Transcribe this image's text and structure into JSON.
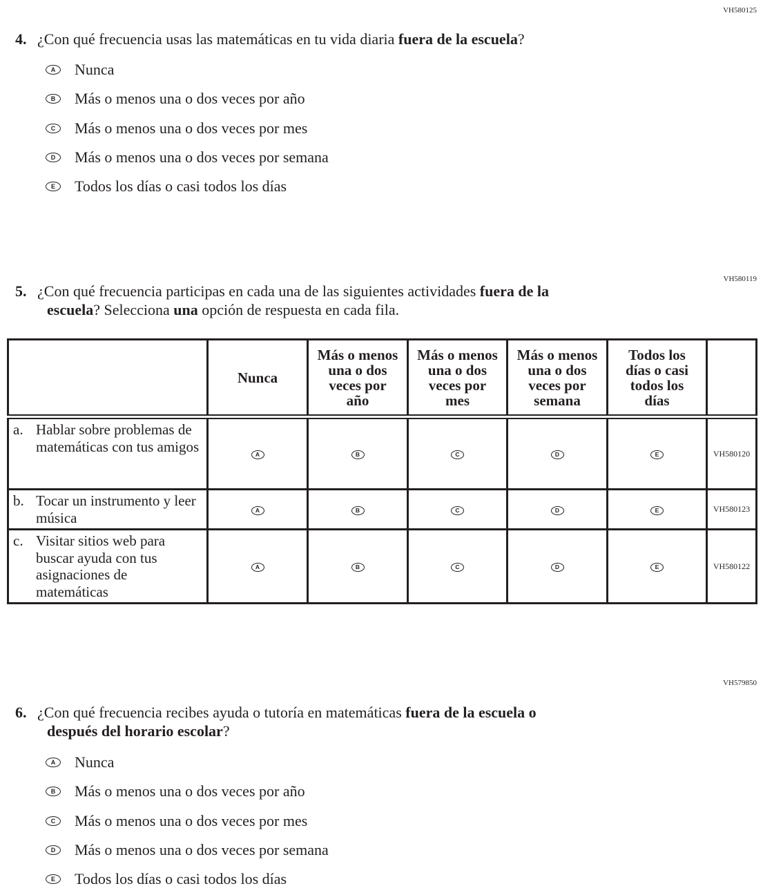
{
  "q4": {
    "code": "VH580125",
    "number": "4.",
    "text": [
      "¿Con qué frecuencia usas las matemáticas en tu vida diaria ",
      "fuera de la escuela",
      "?"
    ],
    "options": [
      {
        "letter": "A",
        "label": "Nunca"
      },
      {
        "letter": "B",
        "label": "Más o menos una o dos veces por año"
      },
      {
        "letter": "C",
        "label": "Más o menos una o dos veces por mes"
      },
      {
        "letter": "D",
        "label": "Más o menos una o dos veces por semana"
      },
      {
        "letter": "E",
        "label": "Todos los días o casi todos los días"
      }
    ]
  },
  "q5": {
    "code": "VH580119",
    "number": "5.",
    "line1": [
      "¿Con qué frecuencia participas en cada una de las siguientes actividades ",
      "fuera de la"
    ],
    "line2": [
      "escuela",
      "? Selecciona ",
      "una",
      " opción de respuesta en cada fila."
    ],
    "columns": [
      "Nunca",
      "Más o menos una o dos veces por año",
      "Más o menos una o dos veces por mes",
      "Más o menos una o dos veces por semana",
      "Todos los días o casi todos los días"
    ],
    "letters": [
      "A",
      "B",
      "C",
      "D",
      "E"
    ],
    "rows": [
      {
        "letter": "a.",
        "label": "Hablar sobre problemas de matemáticas con tus amigos",
        "code": "VH580120"
      },
      {
        "letter": "b.",
        "label": "Tocar un instrumento y leer música",
        "code": "VH580123"
      },
      {
        "letter": "c.",
        "label": "Visitar sitios web para buscar ayuda con tus asignaciones de matemáticas",
        "code": "VH580122"
      }
    ]
  },
  "q6": {
    "code": "VH579850",
    "number": "6.",
    "line1": [
      "¿Con qué frecuencia recibes ayuda o tutoría en matemáticas ",
      "fuera de la escuela o"
    ],
    "line2": [
      "después del horario escolar",
      "?"
    ],
    "options": [
      {
        "letter": "A",
        "label": "Nunca"
      },
      {
        "letter": "B",
        "label": "Más o menos una o dos veces por año"
      },
      {
        "letter": "C",
        "label": "Más o menos una o dos veces por mes"
      },
      {
        "letter": "D",
        "label": "Más o menos una o dos veces por semana"
      },
      {
        "letter": "E",
        "label": "Todos los días o casi todos los días"
      }
    ]
  }
}
